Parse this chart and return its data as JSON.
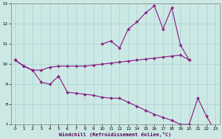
{
  "xlabel": "Windchill (Refroidissement éolien,°C)",
  "background_color": "#cce8e4",
  "line_color": "#882288",
  "xlim": [
    -0.5,
    23.5
  ],
  "ylim": [
    7,
    13
  ],
  "yticks": [
    7,
    8,
    9,
    10,
    11,
    12,
    13
  ],
  "xticks": [
    0,
    1,
    2,
    3,
    4,
    5,
    6,
    7,
    8,
    9,
    10,
    11,
    12,
    13,
    14,
    15,
    16,
    17,
    18,
    19,
    20,
    21,
    22,
    23
  ],
  "x": [
    0,
    1,
    2,
    3,
    4,
    5,
    6,
    7,
    8,
    9,
    10,
    11,
    12,
    13,
    14,
    15,
    16,
    17,
    18,
    19,
    20,
    21,
    22,
    23
  ],
  "line_top": [
    10.2,
    9.9,
    9.7,
    null,
    null,
    9.4,
    null,
    null,
    null,
    null,
    11.0,
    11.15,
    10.8,
    11.75,
    12.1,
    12.55,
    12.9,
    11.75,
    12.8,
    10.95,
    10.2,
    null,
    null,
    null
  ],
  "line_mid": [
    10.2,
    9.9,
    9.7,
    9.7,
    9.85,
    9.9,
    9.9,
    9.9,
    9.9,
    9.95,
    10.0,
    10.05,
    10.1,
    10.15,
    10.2,
    10.25,
    10.3,
    10.35,
    10.4,
    10.45,
    10.2,
    null,
    null,
    null
  ],
  "line_bot": [
    10.2,
    9.9,
    9.7,
    9.1,
    9.0,
    9.4,
    8.6,
    8.55,
    8.5,
    8.45,
    8.35,
    8.3,
    8.3,
    8.1,
    7.9,
    7.7,
    7.5,
    7.35,
    7.2,
    7.0,
    7.0,
    8.3,
    7.4,
    6.65
  ]
}
